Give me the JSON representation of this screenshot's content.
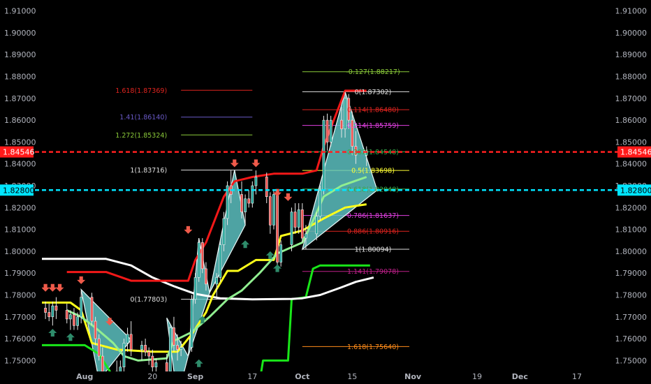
{
  "chart_data": {
    "type": "candlestick",
    "title": "",
    "ylim": [
      1.745,
      1.915
    ],
    "xlim": [
      "2020-07-20",
      "2020-12-26"
    ],
    "y_ticks": [
      "1.75000",
      "1.76000",
      "1.77000",
      "1.78000",
      "1.79000",
      "1.80000",
      "1.81000",
      "1.82000",
      "1.83000",
      "1.84000",
      "1.85000",
      "1.86000",
      "1.87000",
      "1.88000",
      "1.89000",
      "1.90000",
      "1.91000"
    ],
    "x_ticks": [
      {
        "date": "2020-08-01",
        "label": "Aug"
      },
      {
        "date": "2020-08-20",
        "label": "20"
      },
      {
        "date": "2020-09-01",
        "label": "Sep"
      },
      {
        "date": "2020-09-17",
        "label": "17"
      },
      {
        "date": "2020-10-01",
        "label": "Oct"
      },
      {
        "date": "2020-10-15",
        "label": "15"
      },
      {
        "date": "2020-11-01",
        "label": "Nov"
      },
      {
        "date": "2020-11-19",
        "label": "19"
      },
      {
        "date": "2020-12-01",
        "label": "Dec"
      },
      {
        "date": "2020-12-17",
        "label": "17"
      }
    ],
    "price_labels": [
      {
        "value": "1.84546",
        "y": 1.84546,
        "color": "#ff1a1a",
        "text_color": "#ffffff"
      },
      {
        "value": "1.82800",
        "y": 1.828,
        "color": "#00e5ff",
        "text_color": "#000000"
      }
    ],
    "horizontal_lines": [
      {
        "y": 1.84546,
        "color": "#ff2020",
        "style": "dashed"
      },
      {
        "y": 1.828,
        "color": "#00e5ff",
        "style": "dashed"
      }
    ],
    "candles": [
      {
        "x": "2020-07-21",
        "o": 1.774,
        "h": 1.777,
        "l": 1.769,
        "c": 1.772
      },
      {
        "x": "2020-07-22",
        "o": 1.772,
        "h": 1.776,
        "l": 1.768,
        "c": 1.77
      },
      {
        "x": "2020-07-23",
        "o": 1.77,
        "h": 1.777,
        "l": 1.766,
        "c": 1.775
      },
      {
        "x": "2020-07-24",
        "o": 1.775,
        "h": 1.779,
        "l": 1.769,
        "c": 1.773
      },
      {
        "x": "2020-07-27",
        "o": 1.773,
        "h": 1.776,
        "l": 1.767,
        "c": 1.769
      },
      {
        "x": "2020-07-28",
        "o": 1.769,
        "h": 1.773,
        "l": 1.764,
        "c": 1.771
      },
      {
        "x": "2020-07-29",
        "o": 1.771,
        "h": 1.774,
        "l": 1.764,
        "c": 1.766
      },
      {
        "x": "2020-07-30",
        "o": 1.766,
        "h": 1.772,
        "l": 1.764,
        "c": 1.77
      },
      {
        "x": "2020-07-31",
        "o": 1.77,
        "h": 1.782,
        "l": 1.767,
        "c": 1.779
      },
      {
        "x": "2020-08-03",
        "o": 1.779,
        "h": 1.781,
        "l": 1.766,
        "c": 1.768
      },
      {
        "x": "2020-08-04",
        "o": 1.768,
        "h": 1.77,
        "l": 1.757,
        "c": 1.76
      },
      {
        "x": "2020-08-05",
        "o": 1.76,
        "h": 1.762,
        "l": 1.75,
        "c": 1.752
      },
      {
        "x": "2020-08-06",
        "o": 1.752,
        "h": 1.756,
        "l": 1.742,
        "c": 1.745
      },
      {
        "x": "2020-08-10",
        "o": 1.745,
        "h": 1.75,
        "l": 1.738,
        "c": 1.742
      },
      {
        "x": "2020-08-11",
        "o": 1.742,
        "h": 1.75,
        "l": 1.738,
        "c": 1.747
      },
      {
        "x": "2020-08-12",
        "o": 1.747,
        "h": 1.76,
        "l": 1.744,
        "c": 1.758
      },
      {
        "x": "2020-08-13",
        "o": 1.758,
        "h": 1.765,
        "l": 1.754,
        "c": 1.762
      },
      {
        "x": "2020-08-14",
        "o": 1.762,
        "h": 1.768,
        "l": 1.752,
        "c": 1.755
      },
      {
        "x": "2020-08-17",
        "o": 1.755,
        "h": 1.759,
        "l": 1.75,
        "c": 1.757
      },
      {
        "x": "2020-08-18",
        "o": 1.757,
        "h": 1.76,
        "l": 1.752,
        "c": 1.754
      },
      {
        "x": "2020-08-19",
        "o": 1.754,
        "h": 1.756,
        "l": 1.748,
        "c": 1.752
      },
      {
        "x": "2020-08-20",
        "o": 1.752,
        "h": 1.755,
        "l": 1.745,
        "c": 1.747
      },
      {
        "x": "2020-08-21",
        "o": 1.747,
        "h": 1.751,
        "l": 1.741,
        "c": 1.749
      },
      {
        "x": "2020-08-24",
        "o": 1.749,
        "h": 1.753,
        "l": 1.74,
        "c": 1.745
      },
      {
        "x": "2020-08-25",
        "o": 1.745,
        "h": 1.766,
        "l": 1.744,
        "c": 1.765
      },
      {
        "x": "2020-08-26",
        "o": 1.765,
        "h": 1.77,
        "l": 1.754,
        "c": 1.757
      },
      {
        "x": "2020-08-27",
        "o": 1.757,
        "h": 1.762,
        "l": 1.75,
        "c": 1.755
      },
      {
        "x": "2020-08-28",
        "o": 1.755,
        "h": 1.759,
        "l": 1.752,
        "c": 1.756
      },
      {
        "x": "2020-08-31",
        "o": 1.756,
        "h": 1.78,
        "l": 1.754,
        "c": 1.778
      },
      {
        "x": "2020-09-01",
        "o": 1.778,
        "h": 1.79,
        "l": 1.776,
        "c": 1.788
      },
      {
        "x": "2020-09-02",
        "o": 1.788,
        "h": 1.806,
        "l": 1.786,
        "c": 1.804
      },
      {
        "x": "2020-09-03",
        "o": 1.804,
        "h": 1.806,
        "l": 1.79,
        "c": 1.792
      },
      {
        "x": "2020-09-04",
        "o": 1.792,
        "h": 1.795,
        "l": 1.782,
        "c": 1.785
      },
      {
        "x": "2020-09-07",
        "o": 1.785,
        "h": 1.79,
        "l": 1.778,
        "c": 1.788
      },
      {
        "x": "2020-09-08",
        "o": 1.788,
        "h": 1.805,
        "l": 1.786,
        "c": 1.803
      },
      {
        "x": "2020-09-09",
        "o": 1.803,
        "h": 1.818,
        "l": 1.8,
        "c": 1.815
      },
      {
        "x": "2020-09-10",
        "o": 1.815,
        "h": 1.832,
        "l": 1.812,
        "c": 1.83
      },
      {
        "x": "2020-09-11",
        "o": 1.83,
        "h": 1.837,
        "l": 1.822,
        "c": 1.826
      },
      {
        "x": "2020-09-14",
        "o": 1.826,
        "h": 1.832,
        "l": 1.815,
        "c": 1.818
      },
      {
        "x": "2020-09-15",
        "o": 1.818,
        "h": 1.826,
        "l": 1.812,
        "c": 1.824
      },
      {
        "x": "2020-09-16",
        "o": 1.824,
        "h": 1.828,
        "l": 1.82,
        "c": 1.822
      },
      {
        "x": "2020-09-17",
        "o": 1.822,
        "h": 1.832,
        "l": 1.82,
        "c": 1.83
      },
      {
        "x": "2020-09-18",
        "o": 1.83,
        "h": 1.837,
        "l": 1.826,
        "c": 1.834
      },
      {
        "x": "2020-09-21",
        "o": 1.834,
        "h": 1.836,
        "l": 1.822,
        "c": 1.825
      },
      {
        "x": "2020-09-22",
        "o": 1.825,
        "h": 1.827,
        "l": 1.808,
        "c": 1.812
      },
      {
        "x": "2020-09-23",
        "o": 1.812,
        "h": 1.828,
        "l": 1.81,
        "c": 1.826
      },
      {
        "x": "2020-09-24",
        "o": 1.826,
        "h": 1.828,
        "l": 1.793,
        "c": 1.795
      },
      {
        "x": "2020-09-25",
        "o": 1.795,
        "h": 1.805,
        "l": 1.793,
        "c": 1.803
      },
      {
        "x": "2020-09-28",
        "o": 1.803,
        "h": 1.82,
        "l": 1.8,
        "c": 1.818
      },
      {
        "x": "2020-09-29",
        "o": 1.818,
        "h": 1.822,
        "l": 1.808,
        "c": 1.811
      },
      {
        "x": "2020-09-30",
        "o": 1.811,
        "h": 1.822,
        "l": 1.808,
        "c": 1.819
      },
      {
        "x": "2020-10-01",
        "o": 1.819,
        "h": 1.822,
        "l": 1.804,
        "c": 1.806
      },
      {
        "x": "2020-10-02",
        "o": 1.806,
        "h": 1.812,
        "l": 1.801,
        "c": 1.808
      },
      {
        "x": "2020-10-05",
        "o": 1.808,
        "h": 1.818,
        "l": 1.805,
        "c": 1.816
      },
      {
        "x": "2020-10-06",
        "o": 1.816,
        "h": 1.83,
        "l": 1.814,
        "c": 1.828
      },
      {
        "x": "2020-10-07",
        "o": 1.828,
        "h": 1.862,
        "l": 1.826,
        "c": 1.86
      },
      {
        "x": "2020-10-08",
        "o": 1.86,
        "h": 1.863,
        "l": 1.846,
        "c": 1.85
      },
      {
        "x": "2020-10-09",
        "o": 1.85,
        "h": 1.862,
        "l": 1.848,
        "c": 1.86
      },
      {
        "x": "2020-10-12",
        "o": 1.86,
        "h": 1.866,
        "l": 1.852,
        "c": 1.856
      },
      {
        "x": "2020-10-13",
        "o": 1.856,
        "h": 1.873,
        "l": 1.852,
        "c": 1.87
      },
      {
        "x": "2020-10-14",
        "o": 1.87,
        "h": 1.872,
        "l": 1.856,
        "c": 1.86
      },
      {
        "x": "2020-10-15",
        "o": 1.86,
        "h": 1.864,
        "l": 1.844,
        "c": 1.848
      },
      {
        "x": "2020-10-16",
        "o": 1.848,
        "h": 1.855,
        "l": 1.84,
        "c": 1.844
      },
      {
        "x": "2020-10-19",
        "o": 1.844,
        "h": 1.848,
        "l": 1.839,
        "c": 1.846
      }
    ],
    "red_line": [
      [
        "2020-07-27",
        1.7905
      ],
      [
        "2020-08-07",
        1.7905
      ],
      [
        "2020-08-14",
        1.7865
      ],
      [
        "2020-08-24",
        1.7865
      ],
      [
        "2020-08-30",
        1.7865
      ],
      [
        "2020-09-01",
        1.796
      ],
      [
        "2020-09-04",
        1.804
      ],
      [
        "2020-09-09",
        1.825
      ],
      [
        "2020-09-12",
        1.832
      ],
      [
        "2020-09-17",
        1.834
      ],
      [
        "2020-09-23",
        1.8355
      ],
      [
        "2020-10-01",
        1.8355
      ],
      [
        "2020-10-05",
        1.837
      ],
      [
        "2020-10-07",
        1.848
      ],
      [
        "2020-10-13",
        1.8735
      ],
      [
        "2020-10-19",
        1.8735
      ]
    ],
    "yellow_line": [
      [
        "2020-07-20",
        1.7765
      ],
      [
        "2020-07-28",
        1.7765
      ],
      [
        "2020-07-31",
        1.773
      ],
      [
        "2020-08-03",
        1.758
      ],
      [
        "2020-08-10",
        1.755
      ],
      [
        "2020-08-20",
        1.754
      ],
      [
        "2020-08-27",
        1.754
      ],
      [
        "2020-08-31",
        1.762
      ],
      [
        "2020-09-04",
        1.772
      ],
      [
        "2020-09-06",
        1.78
      ],
      [
        "2020-09-10",
        1.791
      ],
      [
        "2020-09-13",
        1.791
      ],
      [
        "2020-09-18",
        1.796
      ],
      [
        "2020-09-23",
        1.796
      ],
      [
        "2020-09-25",
        1.807
      ],
      [
        "2020-10-01",
        1.8095
      ],
      [
        "2020-10-07",
        1.815
      ],
      [
        "2020-10-13",
        1.82
      ],
      [
        "2020-10-19",
        1.8215
      ]
    ],
    "light_green_line": [
      [
        "2020-07-27",
        1.773
      ],
      [
        "2020-07-31",
        1.77
      ],
      [
        "2020-08-04",
        1.765
      ],
      [
        "2020-08-09",
        1.758
      ],
      [
        "2020-08-12",
        1.752
      ],
      [
        "2020-08-16",
        1.75
      ],
      [
        "2020-08-24",
        1.751
      ],
      [
        "2020-08-26",
        1.759
      ],
      [
        "2020-08-31",
        1.763
      ],
      [
        "2020-09-05",
        1.77
      ],
      [
        "2020-09-10",
        1.778
      ],
      [
        "2020-09-14",
        1.782
      ],
      [
        "2020-09-19",
        1.79
      ],
      [
        "2020-09-24",
        1.799
      ],
      [
        "2020-10-01",
        1.804
      ],
      [
        "2020-10-04",
        1.814
      ],
      [
        "2020-10-07",
        1.825
      ],
      [
        "2020-10-12",
        1.83
      ],
      [
        "2020-10-19",
        1.834
      ]
    ],
    "white_line": [
      [
        "2020-07-20",
        1.7965
      ],
      [
        "2020-08-07",
        1.7965
      ],
      [
        "2020-08-14",
        1.7935
      ],
      [
        "2020-08-20",
        1.788
      ],
      [
        "2020-08-26",
        1.784
      ],
      [
        "2020-09-01",
        1.7805
      ],
      [
        "2020-09-08",
        1.7785
      ],
      [
        "2020-09-17",
        1.778
      ],
      [
        "2020-09-28",
        1.7782
      ],
      [
        "2020-10-01",
        1.7785
      ],
      [
        "2020-10-06",
        1.78
      ],
      [
        "2020-10-12",
        1.7835
      ],
      [
        "2020-10-16",
        1.786
      ],
      [
        "2020-10-21",
        1.788
      ]
    ],
    "green_line": [
      [
        "2020-07-20",
        1.757
      ],
      [
        "2020-08-01",
        1.757
      ],
      [
        "2020-08-05",
        1.753
      ],
      [
        "2020-08-10",
        1.74
      ],
      [
        "2020-09-19",
        1.74
      ],
      [
        "2020-09-20",
        1.75
      ],
      [
        "2020-09-27",
        1.75
      ],
      [
        "2020-09-28",
        1.778
      ],
      [
        "2020-10-02",
        1.779
      ],
      [
        "2020-10-04",
        1.792
      ],
      [
        "2020-10-06",
        1.7935
      ],
      [
        "2020-10-20",
        1.7935
      ]
    ],
    "triangles": [
      [
        [
          "2020-07-31",
          1.7825
        ],
        [
          "2020-08-14",
          1.7595
        ],
        [
          "2020-08-05",
          1.741
        ]
      ],
      [
        [
          "2020-08-24",
          1.7695
        ],
        [
          "2020-08-30",
          1.752
        ],
        [
          "2020-08-27",
          1.733
        ]
      ],
      [
        [
          "2020-08-30",
          1.752
        ],
        [
          "2020-09-02",
          1.806
        ],
        [
          "2020-09-05",
          1.781
        ]
      ],
      [
        [
          "2020-09-05",
          1.781
        ],
        [
          "2020-09-12",
          1.8372
        ],
        [
          "2020-09-15",
          1.812
        ]
      ],
      [
        [
          "2020-10-01",
          1.8009
        ],
        [
          "2020-10-13",
          1.873
        ],
        [
          "2020-10-22",
          1.828
        ]
      ]
    ],
    "down_arrows": [
      [
        "2020-07-21",
        1.7815
      ],
      [
        "2020-07-23",
        1.7815
      ],
      [
        "2020-07-25",
        1.7815
      ],
      [
        "2020-07-31",
        1.785
      ],
      [
        "2020-08-08",
        1.766
      ],
      [
        "2020-08-30",
        1.808
      ],
      [
        "2020-09-12",
        1.8385
      ],
      [
        "2020-09-18",
        1.8385
      ],
      [
        "2020-09-24",
        1.825
      ],
      [
        "2020-09-27",
        1.823
      ]
    ],
    "up_arrows": [
      [
        "2020-07-23",
        1.7645
      ],
      [
        "2020-07-28",
        1.7625
      ],
      [
        "2020-09-02",
        1.7505
      ],
      [
        "2020-09-03",
        1.7705
      ],
      [
        "2020-09-15",
        1.805
      ],
      [
        "2020-09-22",
        1.8
      ],
      [
        "2020-09-24",
        1.794
      ]
    ],
    "fib_upper": {
      "x_range": [
        "2020-10-01",
        "2020-10-31"
      ],
      "levels": [
        {
          "label": "-0.127(1.88217)",
          "y": 1.88217,
          "color": "#8ccc3a"
        },
        {
          "label": "0(1.87302)",
          "y": 1.87302,
          "color": "#e0e0e0"
        },
        {
          "label": "0.114(1.86480)",
          "y": 1.8648,
          "color": "#e0241f"
        },
        {
          "label": "0.214(1.85759)",
          "y": 1.85759,
          "color": "#e040e0"
        },
        {
          "label": "0.382(1.84548)",
          "y": 1.84548,
          "color": "#3aa84a"
        },
        {
          "label": "0.5(1.83698)",
          "y": 1.83698,
          "color": "#ffff33"
        },
        {
          "label": "0.618(1.82848)",
          "y": 1.82848,
          "color": "#3aa84a"
        },
        {
          "label": "0.786(1.81637)",
          "y": 1.81637,
          "color": "#e040e0"
        },
        {
          "label": "0.886(1.80916)",
          "y": 1.80916,
          "color": "#e0241f"
        },
        {
          "label": "1(1.80094)",
          "y": 1.80094,
          "color": "#e0e0e0"
        },
        {
          "label": "1.141(1.79078)",
          "y": 1.79078,
          "color": "#c0208a"
        },
        {
          "label": "1.618(1.75640)",
          "y": 1.7564,
          "color": "#ff8c1a"
        }
      ]
    },
    "fib_left": {
      "x_range": [
        "2020-08-28",
        "2020-09-17"
      ],
      "levels": [
        {
          "label": "1.618(1.87369)",
          "y": 1.87369,
          "color": "#e0241f"
        },
        {
          "label": "1.41(1.86140)",
          "y": 1.8614,
          "color": "#6a5ac8"
        },
        {
          "label": "1.272(1.85324)",
          "y": 1.85324,
          "color": "#8ccc3a"
        },
        {
          "label": "1(1.83716)",
          "y": 1.83716,
          "color": "#e0e0e0"
        },
        {
          "label": "0(1.77803)",
          "y": 1.77803,
          "color": "#e0e0e0"
        }
      ]
    },
    "xlabel": "",
    "ylabel": ""
  }
}
